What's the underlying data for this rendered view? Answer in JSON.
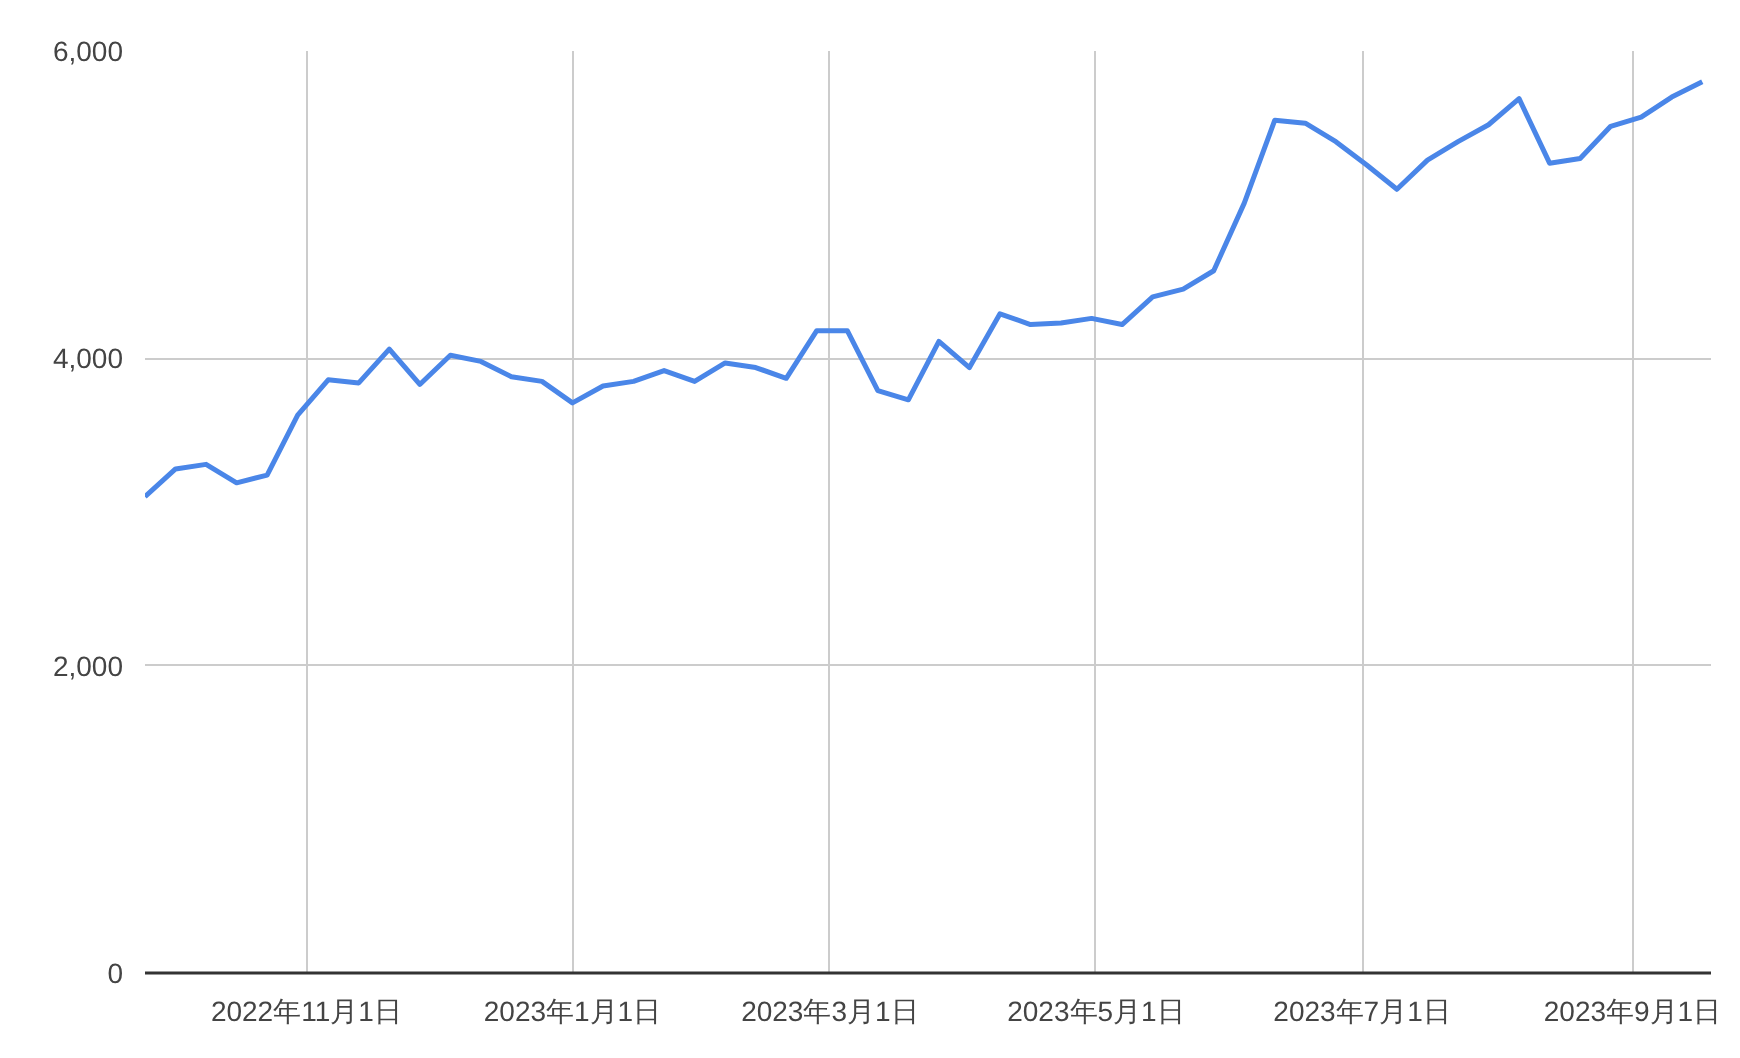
{
  "chart_data": {
    "type": "line",
    "x": [
      "2022-09-25",
      "2022-10-02",
      "2022-10-09",
      "2022-10-16",
      "2022-10-23",
      "2022-10-30",
      "2022-11-06",
      "2022-11-13",
      "2022-11-20",
      "2022-11-27",
      "2022-12-04",
      "2022-12-11",
      "2022-12-18",
      "2022-12-25",
      "2023-01-01",
      "2023-01-08",
      "2023-01-15",
      "2023-01-22",
      "2023-01-29",
      "2023-02-05",
      "2023-02-12",
      "2023-02-19",
      "2023-02-26",
      "2023-03-05",
      "2023-03-12",
      "2023-03-19",
      "2023-03-26",
      "2023-04-02",
      "2023-04-09",
      "2023-04-16",
      "2023-04-23",
      "2023-04-30",
      "2023-05-07",
      "2023-05-14",
      "2023-05-21",
      "2023-05-28",
      "2023-06-04",
      "2023-06-11",
      "2023-06-18",
      "2023-06-25",
      "2023-07-02",
      "2023-07-09",
      "2023-07-16",
      "2023-07-23",
      "2023-07-30",
      "2023-08-06",
      "2023-08-13",
      "2023-08-20",
      "2023-08-27",
      "2023-09-03",
      "2023-09-10",
      "2023-09-17"
    ],
    "series": [
      {
        "color": "#4a86e8",
        "values": [
          3100,
          3280,
          3310,
          3190,
          3240,
          3630,
          3860,
          3840,
          4060,
          3830,
          4020,
          3980,
          3880,
          3850,
          3710,
          3820,
          3850,
          3920,
          3850,
          3970,
          3940,
          3870,
          4180,
          4180,
          3790,
          3730,
          4110,
          3940,
          4290,
          4220,
          4230,
          4260,
          4220,
          4400,
          4450,
          4570,
          5010,
          5550,
          5530,
          5410,
          5260,
          5100,
          5290,
          5410,
          5520,
          5690,
          5270,
          5300,
          5510,
          5570,
          5700,
          5800
        ]
      }
    ],
    "xlim": [
      "2022-09-25",
      "2023-09-19"
    ],
    "xticks": [
      {
        "value": "2022-11-01",
        "label": "2022年11月1日"
      },
      {
        "value": "2023-01-01",
        "label": "2023年1月1日"
      },
      {
        "value": "2023-03-01",
        "label": "2023年3月1日"
      },
      {
        "value": "2023-05-01",
        "label": "2023年5月1日"
      },
      {
        "value": "2023-07-01",
        "label": "2023年7月1日"
      },
      {
        "value": "2023-09-01",
        "label": "2023年9月1日"
      }
    ],
    "ylim": [
      0,
      6000
    ],
    "yticks": [
      {
        "value": 0,
        "label": "0"
      },
      {
        "value": 2000,
        "label": "2,000"
      },
      {
        "value": 4000,
        "label": "4,000"
      },
      {
        "value": 6000,
        "label": "6,000"
      }
    ],
    "grid": true,
    "marker": "none",
    "line_style": "solid"
  }
}
